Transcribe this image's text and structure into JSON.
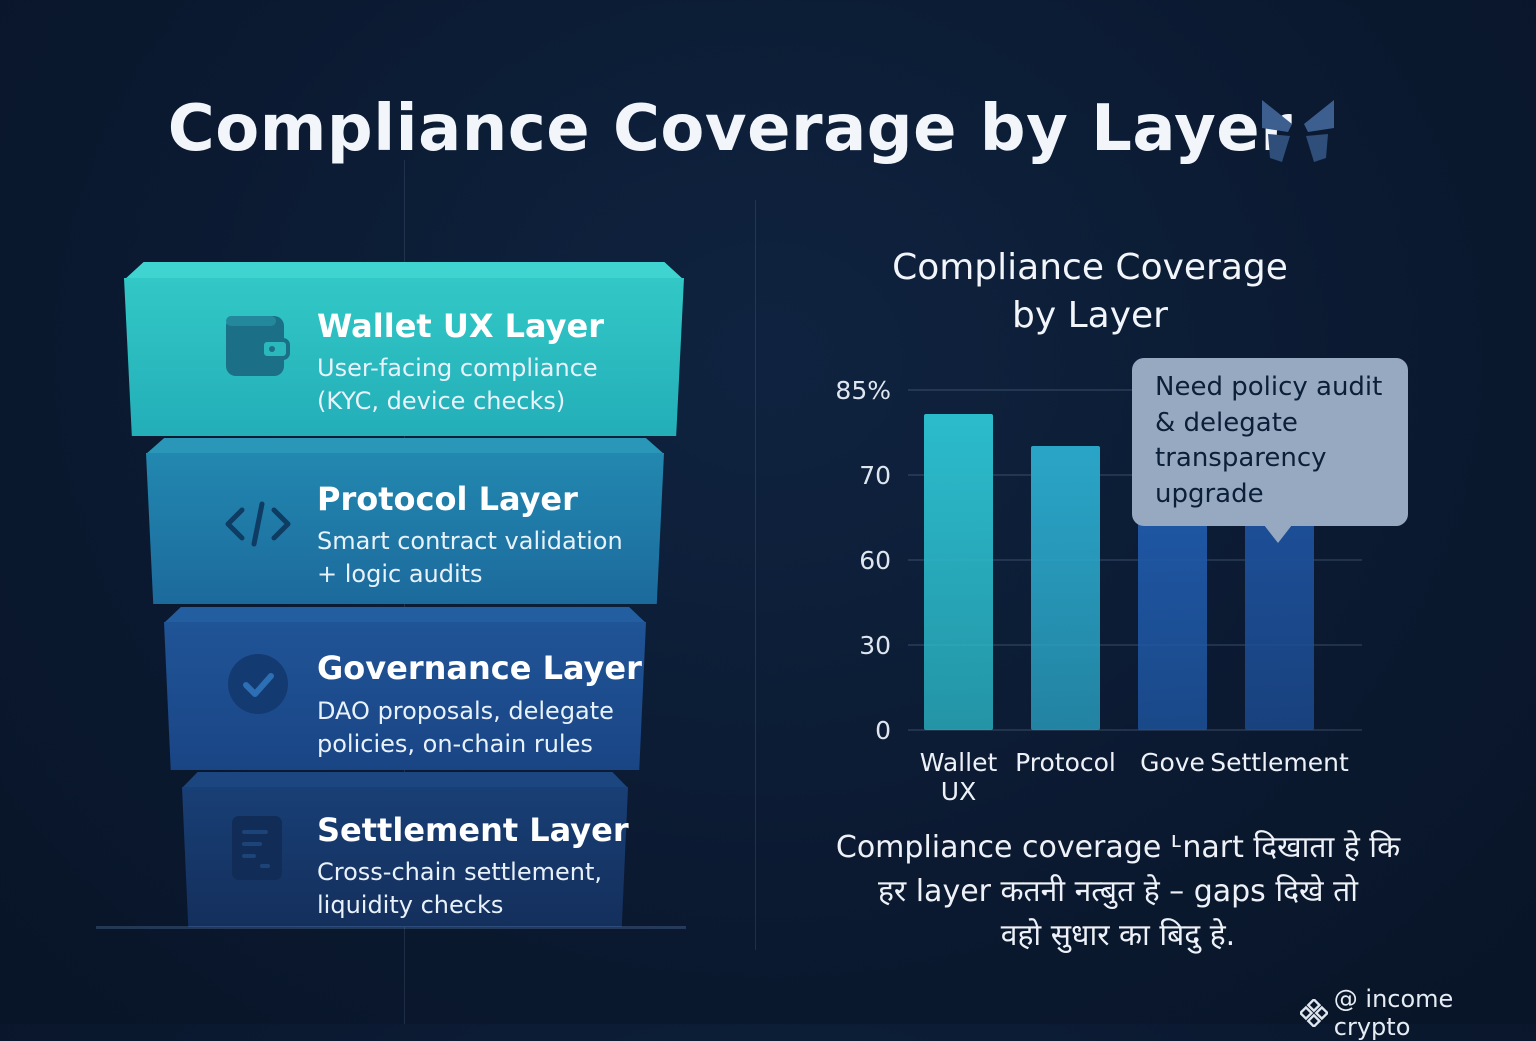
{
  "title": "Compliance Coverage by Layer",
  "stack": {
    "layers": [
      {
        "title": "Wallet UX Layer",
        "desc_line1": "User-facing compliance",
        "desc_line2": "(KYC, device checks)",
        "icon": "wallet-icon"
      },
      {
        "title": "Protocol Layer",
        "desc_line1": "Smart contract validation",
        "desc_line2": "+ logic audits",
        "icon": "code-icon"
      },
      {
        "title": "Governance Layer",
        "desc_line1": "DAO proposals, delegate",
        "desc_line2": "policies, on-chain rules",
        "icon": "check-circle-icon"
      },
      {
        "title": "Settlement Layer",
        "desc_line1": "Cross-chain settlement,",
        "desc_line2": "liquidity checks",
        "icon": "document-icon"
      }
    ],
    "colors": [
      "#2bbfc0",
      "#1e7fa6",
      "#1d4f92",
      "#173e7a"
    ]
  },
  "chart_data": {
    "type": "bar",
    "title_line1": "Compliance Coverage",
    "title_line2": "by Layer",
    "categories": [
      "Wallet UX",
      "Protocol",
      "Gove",
      "Settlement"
    ],
    "category_lines": [
      [
        "Wallet",
        "UX"
      ],
      [
        "Protocol"
      ],
      [
        "Gove"
      ],
      [
        "Settlement"
      ]
    ],
    "values": [
      79,
      71,
      59,
      55
    ],
    "y_ticks": [
      "0",
      "30",
      "60",
      "70",
      "85%"
    ],
    "ylim": [
      0,
      85
    ],
    "grid": true,
    "bar_colors": [
      "#2bbccc",
      "#2aa5c7",
      "#1f58a6",
      "#1d4f98"
    ],
    "annotation": {
      "line1": "Need policy audit",
      "line2": "& delegate",
      "line3": "transparency",
      "line4": "upgrade"
    }
  },
  "caption": {
    "line1": "Compliance coverage ᒻnart दिखाता हे कि",
    "line2": "हर layer कतनी नत्बुत हे – gaps दिखे तो",
    "line3": "वहो सुधार का बिदु हे."
  },
  "footer": {
    "handle": "@ income crypto",
    "icon": "binance-logo-icon"
  }
}
